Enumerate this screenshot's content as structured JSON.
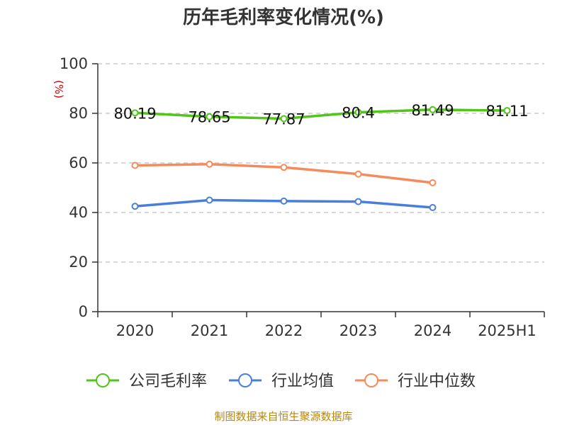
{
  "chart_data": {
    "type": "line",
    "title": "历年毛利率变化情况(%)",
    "ylabel": "(%)",
    "categories": [
      "2020",
      "2021",
      "2022",
      "2023",
      "2024",
      "2025H1"
    ],
    "ylim": [
      0,
      100
    ],
    "yticks": [
      0,
      20,
      40,
      60,
      80,
      100
    ],
    "grid": true,
    "legend_position": "bottom",
    "series": [
      {
        "name": "公司毛利率",
        "color": "#52c41a",
        "values": [
          80.19,
          78.65,
          77.87,
          80.4,
          81.49,
          81.11
        ],
        "labels": [
          "80.19",
          "78.65",
          "77.87",
          "80.4",
          "81.49",
          "81.11"
        ]
      },
      {
        "name": "行业均值",
        "color": "#4a7fd9",
        "values": [
          42.5,
          45.0,
          44.6,
          44.4,
          42.0,
          null
        ]
      },
      {
        "name": "行业中位数",
        "color": "#f58b5a",
        "values": [
          59.0,
          59.5,
          58.2,
          55.5,
          52.0,
          null
        ]
      }
    ]
  },
  "source": "制图数据来自恒生聚源数据库"
}
